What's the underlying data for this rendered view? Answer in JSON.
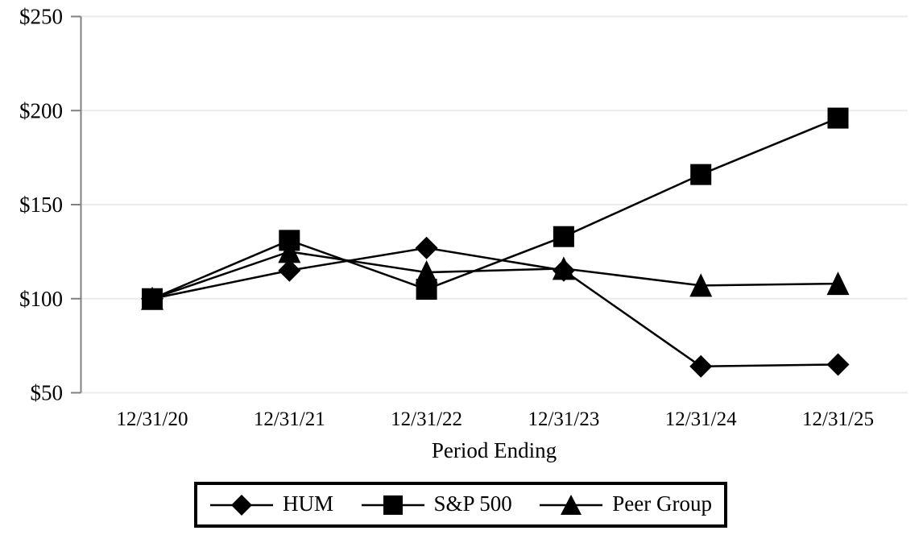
{
  "chart_data": {
    "type": "line",
    "title": "",
    "xlabel": "Period Ending",
    "ylabel": "",
    "categories": [
      "12/31/20",
      "12/31/21",
      "12/31/22",
      "12/31/23",
      "12/31/24",
      "12/31/25"
    ],
    "series": [
      {
        "name": "HUM",
        "marker": "diamond",
        "values": [
          100,
          115,
          127,
          115,
          64,
          65
        ]
      },
      {
        "name": "S&P 500",
        "marker": "square",
        "values": [
          100,
          131,
          105,
          133,
          166,
          196
        ]
      },
      {
        "name": "Peer Group",
        "marker": "triangle",
        "values": [
          100,
          125,
          114,
          116,
          107,
          108
        ]
      }
    ],
    "ylim": [
      50,
      250
    ],
    "yticks": {
      "values": [
        250,
        200,
        150,
        100,
        50
      ],
      "labels": [
        "$250",
        "$200",
        "$150",
        "$100",
        "$50"
      ]
    },
    "grid": true,
    "legend_position": "bottom",
    "colors": {
      "series": "#000000",
      "axis": "#808080",
      "gridline": "#ebebeb",
      "text": "#000000",
      "background": "#ffffff",
      "legend_border": "#000000"
    }
  }
}
